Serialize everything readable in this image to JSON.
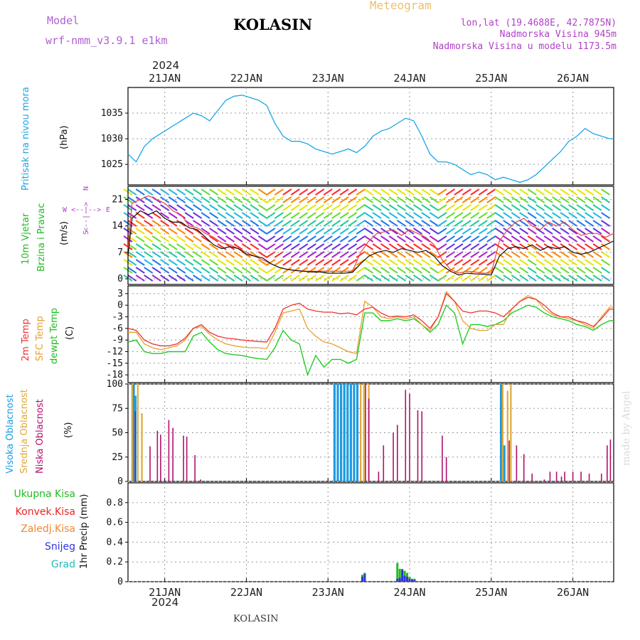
{
  "header": {
    "model_label": "Model",
    "model_name": "wrf-nmm_v3.9.1 e1km",
    "station": "KOLASIN",
    "meteogram_label": "Meteogram",
    "coords": "lon,lat (19.4688E, 42.7875N)",
    "elevation": "Nadmorska Visina 945m",
    "model_elevation": "Nadmorska Visina u modelu 1173.5m",
    "year_top": "2024",
    "year_bottom": "2024",
    "footer_station": "KOLASIN",
    "watermark": "made by Angel"
  },
  "colors": {
    "pressure": "#1aa7e6",
    "temp2m": "#ee3333",
    "sfc_temp": "#e8a030",
    "dewpt": "#22cc22",
    "high_cloud": "#1e9be0",
    "mid_cloud": "#e0a838",
    "low_cloud": "#b0106e",
    "total_precip": "#22bb22",
    "conv_precip": "#ee2222",
    "frozen_precip": "#ee8833",
    "snow": "#3333dd",
    "graupel": "#22bbbb",
    "wind_speed": "#111111",
    "gust": "#ee4444"
  },
  "chart_data": [
    {
      "type": "line",
      "panel": "pressure",
      "ylabel": "Pritisak na nivou mora",
      "unit": "(hPa)",
      "ylim": [
        1021,
        1040
      ],
      "yticks": [
        1025,
        1030,
        1035
      ],
      "xlim": [
        20.55,
        26.5
      ],
      "x_tick_labels": [
        "21JAN",
        "22JAN",
        "23JAN",
        "24JAN",
        "25JAN",
        "26JAN"
      ],
      "x_ticks": [
        21,
        22,
        23,
        24,
        25,
        26
      ],
      "series": [
        {
          "name": "Pritisak na nivou mora",
          "x": [
            20.55,
            20.65,
            20.75,
            20.85,
            20.95,
            21.05,
            21.15,
            21.25,
            21.35,
            21.45,
            21.55,
            21.65,
            21.75,
            21.85,
            21.95,
            22.05,
            22.15,
            22.25,
            22.35,
            22.45,
            22.55,
            22.65,
            22.75,
            22.85,
            22.95,
            23.05,
            23.15,
            23.25,
            23.35,
            23.45,
            23.55,
            23.65,
            23.75,
            23.85,
            23.95,
            24.05,
            24.15,
            24.25,
            24.35,
            24.45,
            24.55,
            24.65,
            24.75,
            24.85,
            24.95,
            25.05,
            25.15,
            25.25,
            25.35,
            25.45,
            25.55,
            25.65,
            25.75,
            25.85,
            25.95,
            26.05,
            26.15,
            26.25,
            26.35,
            26.45,
            26.5
          ],
          "values": [
            1027,
            1025.5,
            1028.5,
            1030,
            1031,
            1032,
            1033,
            1034,
            1035,
            1034.5,
            1033.5,
            1035.5,
            1037.5,
            1038.3,
            1038.5,
            1038,
            1037.5,
            1036.5,
            1033,
            1030.5,
            1029.5,
            1029.5,
            1029,
            1028,
            1027.5,
            1027,
            1027.5,
            1028,
            1027.3,
            1028.5,
            1030.5,
            1031.5,
            1032,
            1033,
            1034,
            1033.5,
            1030.5,
            1027,
            1025.5,
            1025.5,
            1025,
            1024,
            1023,
            1023.5,
            1023,
            1022,
            1022.5,
            1022,
            1021.5,
            1022,
            1023,
            1024.5,
            1026,
            1027.5,
            1029.5,
            1030.5,
            1032,
            1031,
            1030.5,
            1030,
            1030
          ]
        }
      ]
    },
    {
      "type": "line",
      "panel": "wind",
      "ylabel": "10m Vjetar Brzina i Pravac",
      "unit": "(m/s)",
      "compass": {
        "N": "N",
        "S": "S",
        "E": "E",
        "W": "W",
        "marks": "<--|-->"
      },
      "ylim": [
        -1.5,
        24.5
      ],
      "yticks": [
        0,
        7,
        14,
        21
      ],
      "series": [
        {
          "name": "wind speed",
          "x": [
            20.55,
            20.6,
            20.7,
            20.8,
            20.9,
            21.0,
            21.1,
            21.2,
            21.3,
            21.4,
            21.5,
            21.6,
            21.7,
            21.8,
            21.9,
            22.0,
            22.1,
            22.2,
            22.3,
            22.4,
            22.5,
            22.6,
            22.7,
            22.8,
            22.9,
            23.0,
            23.1,
            23.2,
            23.3,
            23.4,
            23.5,
            23.6,
            23.7,
            23.8,
            23.9,
            24.0,
            24.1,
            24.2,
            24.3,
            24.4,
            24.5,
            24.6,
            24.7,
            24.8,
            24.9,
            25.0,
            25.1,
            25.2,
            25.3,
            25.4,
            25.5,
            25.6,
            25.7,
            25.8,
            25.9,
            26.0,
            26.1,
            26.2,
            26.3,
            26.4,
            26.5
          ],
          "values": [
            6,
            16,
            18,
            17,
            18,
            16,
            15,
            15,
            13.5,
            13,
            11,
            9,
            8,
            8.5,
            8,
            6.5,
            6,
            5.5,
            4,
            3,
            2.5,
            2.2,
            2,
            1.8,
            1.8,
            1.5,
            1.5,
            1.5,
            1.7,
            4,
            6,
            7,
            7.5,
            7,
            8,
            7.5,
            7,
            7.5,
            6,
            3.5,
            2,
            1,
            1.5,
            1.3,
            1.2,
            1,
            6,
            8,
            8.5,
            8,
            9,
            7.5,
            8.5,
            8,
            8.5,
            7,
            6.5,
            7,
            8,
            9,
            10
          ]
        },
        {
          "name": "gust",
          "x": [
            20.55,
            20.6,
            20.7,
            20.8,
            20.9,
            21.0,
            21.1,
            21.2,
            21.3,
            21.4,
            21.5,
            21.6,
            21.7,
            21.8,
            21.9,
            22.0,
            22.1,
            22.2,
            22.3,
            22.4,
            22.5,
            22.6,
            22.7,
            22.8,
            22.9,
            23.0,
            23.1,
            23.2,
            23.3,
            23.4,
            23.5,
            23.6,
            23.7,
            23.8,
            23.9,
            24.0,
            24.1,
            24.2,
            24.3,
            24.4,
            24.5,
            24.6,
            24.7,
            24.8,
            24.9,
            25.0,
            25.1,
            25.2,
            25.3,
            25.4,
            25.5,
            25.6,
            25.7,
            25.8,
            25.9,
            26.0,
            26.1,
            26.2,
            26.3,
            26.4,
            26.5
          ],
          "values": [
            8,
            20,
            21,
            22,
            21,
            20,
            18,
            17,
            14,
            13.5,
            12,
            11,
            9.5,
            9,
            8,
            7,
            6,
            5,
            4,
            3,
            2.5,
            2.2,
            2,
            2,
            2,
            2,
            2,
            2,
            2,
            7,
            10,
            12,
            12.5,
            13,
            11.5,
            13,
            12,
            11,
            9,
            5,
            2.5,
            1.5,
            2,
            1.8,
            1.5,
            1.5,
            10,
            13,
            15,
            16,
            14,
            13,
            15,
            14,
            15,
            13,
            11.5,
            12,
            12,
            11,
            12
          ]
        }
      ]
    },
    {
      "type": "line",
      "panel": "temperature",
      "ylabel": "2m Temp / SFC Temp / dewpt Temp",
      "unit": "(C)",
      "ylim": [
        -20,
        5
      ],
      "yticks": [
        3,
        0,
        -3,
        -6,
        -9,
        -12,
        -15,
        -18
      ],
      "series": [
        {
          "name": "2m Temp",
          "x": [
            20.55,
            20.65,
            20.75,
            20.85,
            20.95,
            21.05,
            21.15,
            21.25,
            21.35,
            21.45,
            21.55,
            21.65,
            21.75,
            21.85,
            21.95,
            22.05,
            22.15,
            22.25,
            22.35,
            22.45,
            22.55,
            22.65,
            22.75,
            22.85,
            22.95,
            23.05,
            23.15,
            23.25,
            23.35,
            23.45,
            23.55,
            23.65,
            23.75,
            23.85,
            23.95,
            24.05,
            24.15,
            24.25,
            24.35,
            24.45,
            24.55,
            24.65,
            24.75,
            24.85,
            24.95,
            25.05,
            25.15,
            25.25,
            25.35,
            25.45,
            25.55,
            25.65,
            25.75,
            25.85,
            25.95,
            26.05,
            26.15,
            26.25,
            26.35,
            26.45,
            26.5
          ],
          "values": [
            -6,
            -6.5,
            -9,
            -10,
            -10.5,
            -10.5,
            -10,
            -8.5,
            -6,
            -5,
            -7,
            -8,
            -8.5,
            -8.7,
            -9,
            -9.2,
            -9.4,
            -9.5,
            -6,
            -1,
            0,
            0.5,
            -1,
            -1.5,
            -1.8,
            -1.8,
            -2.2,
            -2,
            -2.5,
            -1,
            -0.5,
            -2,
            -3,
            -2.8,
            -3,
            -2.5,
            -4,
            -6,
            -3,
            3,
            1,
            -1.5,
            -2,
            -1.5,
            -1.5,
            -2,
            -3,
            -1,
            1,
            2,
            1.5,
            0,
            -2,
            -3,
            -3,
            -4,
            -4.5,
            -5.5,
            -3.5,
            -1,
            -1
          ]
        },
        {
          "name": "SFC Temp",
          "x": [
            20.55,
            20.65,
            20.75,
            20.85,
            20.95,
            21.05,
            21.15,
            21.25,
            21.35,
            21.45,
            21.55,
            21.65,
            21.75,
            21.85,
            21.95,
            22.05,
            22.15,
            22.25,
            22.35,
            22.45,
            22.55,
            22.65,
            22.75,
            22.85,
            22.95,
            23.05,
            23.15,
            23.25,
            23.35,
            23.45,
            23.55,
            23.65,
            23.75,
            23.85,
            23.95,
            24.05,
            24.15,
            24.25,
            24.35,
            24.45,
            24.55,
            24.65,
            24.75,
            24.85,
            24.95,
            25.05,
            25.15,
            25.25,
            25.35,
            25.45,
            25.55,
            25.65,
            25.75,
            25.85,
            25.95,
            26.05,
            26.15,
            26.25,
            26.35,
            26.45,
            26.5
          ],
          "values": [
            -7,
            -7,
            -10,
            -11,
            -11.5,
            -11,
            -10.5,
            -9,
            -6,
            -5.5,
            -7.5,
            -9,
            -10,
            -10.5,
            -10.8,
            -11,
            -11,
            -11.2,
            -7,
            -2,
            -1.5,
            -1,
            -6,
            -8,
            -9.5,
            -10,
            -11,
            -12,
            -12.5,
            1,
            -0.5,
            -3,
            -3.5,
            -3,
            -3.5,
            -3,
            -5,
            -6.5,
            -3,
            3.5,
            1,
            -4,
            -6,
            -6.5,
            -6.5,
            -5,
            -5,
            -1,
            1,
            2.5,
            1.5,
            -1,
            -2.5,
            -3,
            -3.5,
            -4,
            -5,
            -6,
            -3,
            -0.5,
            -0.5
          ]
        },
        {
          "name": "dewpt Temp",
          "x": [
            20.55,
            20.65,
            20.75,
            20.85,
            20.95,
            21.05,
            21.15,
            21.25,
            21.35,
            21.45,
            21.55,
            21.65,
            21.75,
            21.85,
            21.95,
            22.05,
            22.15,
            22.25,
            22.35,
            22.45,
            22.55,
            22.65,
            22.75,
            22.85,
            22.95,
            23.05,
            23.15,
            23.25,
            23.35,
            23.45,
            23.55,
            23.65,
            23.75,
            23.85,
            23.95,
            24.05,
            24.15,
            24.25,
            24.35,
            24.45,
            24.55,
            24.65,
            24.75,
            24.85,
            24.95,
            25.05,
            25.15,
            25.25,
            25.35,
            25.45,
            25.55,
            25.65,
            25.75,
            25.85,
            25.95,
            26.05,
            26.15,
            26.25,
            26.35,
            26.45,
            26.5
          ],
          "values": [
            -9.5,
            -9,
            -12,
            -12.5,
            -12.5,
            -12,
            -12,
            -12,
            -8,
            -7,
            -9.5,
            -11.5,
            -12.5,
            -12.8,
            -13,
            -13.5,
            -13.8,
            -14,
            -11,
            -6.5,
            -9,
            -10,
            -18,
            -13,
            -16,
            -14,
            -14,
            -15,
            -14,
            -2,
            -2,
            -4,
            -4,
            -3.5,
            -4,
            -3.5,
            -5,
            -7,
            -5,
            0,
            -2,
            -10,
            -5,
            -5,
            -5.5,
            -5,
            -4,
            -2,
            -1,
            0,
            -0.5,
            -2,
            -3,
            -3.5,
            -4,
            -5,
            -5.5,
            -6.5,
            -5,
            -4,
            -4
          ]
        }
      ]
    },
    {
      "type": "bar",
      "panel": "clouds",
      "ylabel": "Visoka Oblacnost / Srednja Oblacnost / Niska Oblacnost",
      "unit": "(%)",
      "ylim": [
        0,
        100
      ],
      "yticks": [
        0,
        25,
        50,
        75,
        100
      ],
      "series": [
        {
          "name": "Visoka Oblacnost",
          "x": [
            20.62,
            20.64,
            23.08,
            23.12,
            23.16,
            23.2,
            23.24,
            23.28,
            23.32,
            23.36,
            25.12,
            25.16
          ],
          "values": [
            100,
            88,
            100,
            100,
            100,
            100,
            100,
            100,
            100,
            100,
            100,
            37
          ]
        },
        {
          "name": "Srednja Oblacnost",
          "x": [
            20.6,
            20.67,
            20.72,
            23.4,
            23.44,
            23.5,
            25.14,
            25.2,
            25.24
          ],
          "values": [
            100,
            100,
            70,
            100,
            100,
            100,
            100,
            93,
            100
          ]
        },
        {
          "name": "Niska Oblacnost",
          "x": [
            20.64,
            20.82,
            20.91,
            20.95,
            21.05,
            21.1,
            21.23,
            21.27,
            21.37,
            21.44,
            23.46,
            23.5,
            23.62,
            23.68,
            23.8,
            23.85,
            23.95,
            24.0,
            24.1,
            24.15,
            24.4,
            24.45,
            25.22,
            25.31,
            25.4,
            25.5,
            25.65,
            25.72,
            25.8,
            25.86,
            25.9,
            26.0,
            26.1,
            26.2,
            26.35,
            26.42,
            26.46
          ],
          "values": [
            72,
            36,
            52,
            48,
            63,
            55,
            47,
            46,
            27,
            2,
            100,
            85,
            10,
            37,
            50,
            58,
            94,
            90,
            73,
            72,
            47,
            25,
            42,
            37,
            28,
            8,
            2,
            10,
            10,
            5,
            10,
            10,
            10,
            8,
            8,
            37,
            43
          ]
        }
      ]
    },
    {
      "type": "bar",
      "panel": "precip",
      "ylabel": "1hr Precip (mm)",
      "ylim": [
        0,
        1.0
      ],
      "yticks": [
        0,
        0.2,
        0.4,
        0.6,
        0.8
      ],
      "legend": [
        "Ukupna Kisa",
        "Konvek.Kisa",
        "Zaledj.Kisa",
        "Snijeg",
        "Grad"
      ],
      "series": [
        {
          "name": "Ukupna Kisa",
          "x": [
            23.42,
            23.45,
            23.85,
            23.88,
            23.91,
            23.94,
            23.97,
            24.0,
            24.03,
            24.06
          ],
          "values": [
            0.07,
            0.09,
            0.19,
            0.13,
            0.13,
            0.11,
            0.09,
            0.05,
            0.03,
            0.03
          ]
        },
        {
          "name": "Snijeg",
          "x": [
            23.42,
            23.45,
            23.85,
            23.88,
            23.91,
            23.94,
            23.97,
            24.0,
            24.03,
            24.06
          ],
          "values": [
            0.05,
            0.08,
            0.03,
            0.04,
            0.12,
            0.06,
            0.05,
            0.03,
            0.02,
            0.02
          ]
        }
      ]
    }
  ]
}
